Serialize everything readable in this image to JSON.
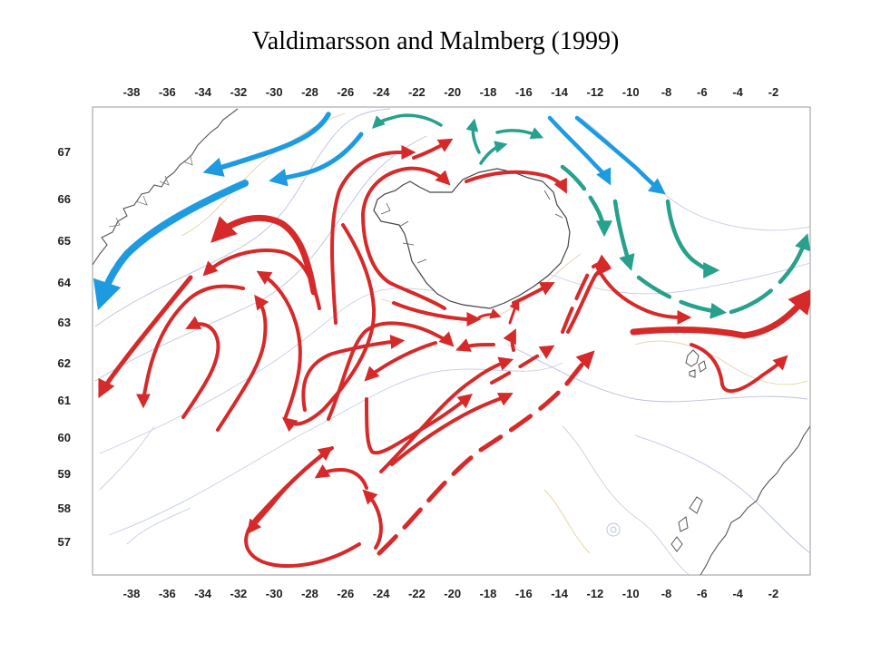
{
  "title": "Valdimarsson and Malmberg (1999)",
  "axes": {
    "longitude_ticks": [
      "-38",
      "-36",
      "-34",
      "-32",
      "-30",
      "-28",
      "-26",
      "-24",
      "-22",
      "-20",
      "-18",
      "-16",
      "-14",
      "-12",
      "-10",
      "-8",
      "-6",
      "-4",
      "-2"
    ],
    "latitude_ticks": [
      "67",
      "66",
      "65",
      "64",
      "63",
      "62",
      "61",
      "60",
      "59",
      "58",
      "57"
    ]
  },
  "legend_colors": {
    "warm_current": "#d62a2a",
    "polar_current": "#1e9be0",
    "arctic_current": "#27a08c",
    "coastline": "#555555",
    "depth_contour": "#aab4d6",
    "shallow_contour": "#e2c98e"
  },
  "features": {
    "landmasses": [
      "greenland-coast",
      "iceland",
      "faroe-islands",
      "scotland-coast"
    ],
    "currents": [
      "warm-atlantic-currents",
      "east-greenland-polar-current",
      "east-icelandic-arctic-current"
    ]
  }
}
